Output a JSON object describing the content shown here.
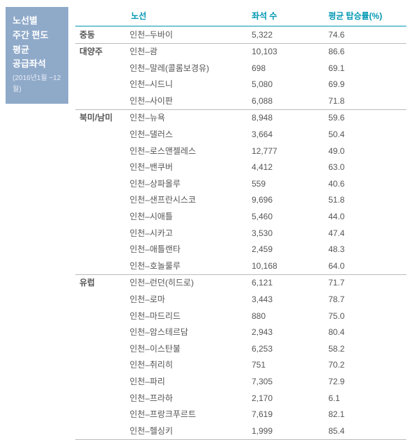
{
  "side": {
    "line1": "노선별",
    "line2": "주간 편도",
    "line3": "평균",
    "line4": "공급좌석",
    "sub": "(2016년1월\n~12월)"
  },
  "headers": {
    "route": "노선",
    "seats": "좌석 수",
    "load": "평균 탑승률(%)"
  },
  "groups": [
    {
      "region": "중동",
      "rows": [
        {
          "route": "인천–두바이",
          "seats": "5,322",
          "load": "74.6"
        }
      ]
    },
    {
      "region": "대양주",
      "rows": [
        {
          "route": "인천–괌",
          "seats": "10,103",
          "load": "86.6"
        },
        {
          "route": "인천–말레(콜롬보경유)",
          "seats": "698",
          "load": "69.1"
        },
        {
          "route": "인천–시드니",
          "seats": "5,080",
          "load": "69.9"
        },
        {
          "route": "인천–사이판",
          "seats": "6,088",
          "load": "71.8"
        }
      ]
    },
    {
      "region": "북미/남미",
      "rows": [
        {
          "route": "인천–뉴욕",
          "seats": "8,948",
          "load": "59.6"
        },
        {
          "route": "인천–댈러스",
          "seats": "3,664",
          "load": "50.4"
        },
        {
          "route": "인천–로스앤젤레스",
          "seats": "12,777",
          "load": "49.0"
        },
        {
          "route": "인천–밴쿠버",
          "seats": "4,412",
          "load": "63.0"
        },
        {
          "route": "인천–상파올루",
          "seats": "559",
          "load": "40.6"
        },
        {
          "route": "인천–샌프란시스코",
          "seats": "9,696",
          "load": "51.8"
        },
        {
          "route": "인천–시애틀",
          "seats": "5,460",
          "load": "44.0"
        },
        {
          "route": "인천–시카고",
          "seats": "3,530",
          "load": "47.4"
        },
        {
          "route": "인천–애틀랜타",
          "seats": "2,459",
          "load": "48.3"
        },
        {
          "route": "인천–호놀룰루",
          "seats": "10,168",
          "load": "64.0"
        }
      ]
    },
    {
      "region": "유럽",
      "rows": [
        {
          "route": "인천–런던(히드로)",
          "seats": "6,121",
          "load": "71.7"
        },
        {
          "route": "인천–로마",
          "seats": "3,443",
          "load": "78.7"
        },
        {
          "route": "인천–마드리드",
          "seats": "880",
          "load": "75.0"
        },
        {
          "route": "인천–암스테르담",
          "seats": "2,943",
          "load": "80.4"
        },
        {
          "route": "인천–이스탄불",
          "seats": "6,253",
          "load": "58.2"
        },
        {
          "route": "인천–취리히",
          "seats": "751",
          "load": "70.2"
        },
        {
          "route": "인천–파리",
          "seats": "7,305",
          "load": "72.9"
        },
        {
          "route": "인천–프라하",
          "seats": "2,170",
          "load": "6.1"
        },
        {
          "route": "인천–프랑크푸르트",
          "seats": "7,619",
          "load": "82.1"
        },
        {
          "route": "인천–헬싱키",
          "seats": "1,999",
          "load": "85.4"
        }
      ]
    }
  ]
}
